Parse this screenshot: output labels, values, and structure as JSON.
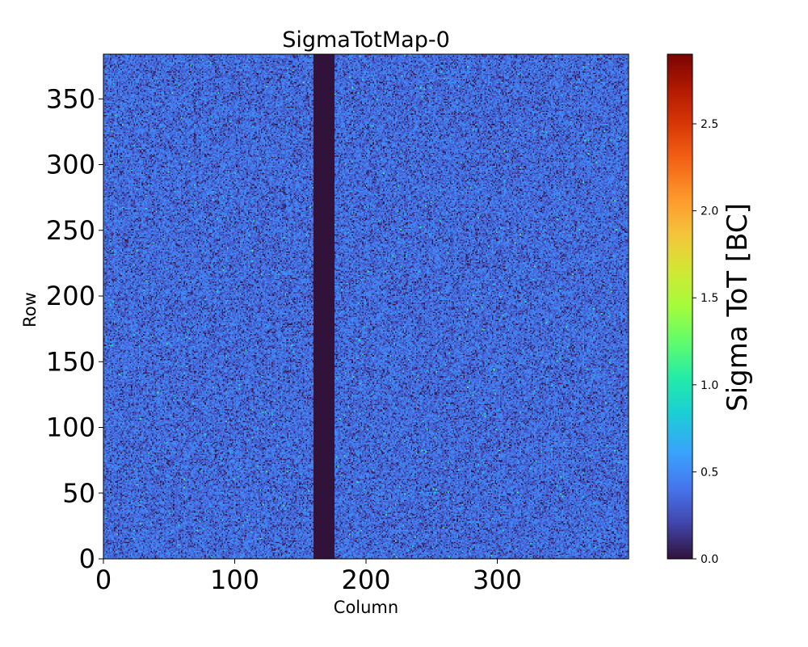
{
  "chart_data": {
    "type": "heatmap",
    "title": "SigmaTotMap-0",
    "xlabel": "Column",
    "ylabel": "Row",
    "xlim": [
      0,
      400
    ],
    "ylim": [
      0,
      384
    ],
    "x_ticks": [
      0,
      100,
      200,
      300
    ],
    "x_tick_labels": [
      "0",
      "100",
      "200",
      "300"
    ],
    "y_ticks": [
      0,
      50,
      100,
      150,
      200,
      250,
      300,
      350
    ],
    "y_tick_labels": [
      "0",
      "50",
      "100",
      "150",
      "200",
      "250",
      "300",
      "350"
    ],
    "dead_column_band": [
      160,
      176
    ],
    "dead_band_value": 0.0,
    "typical_value_range": [
      0.1,
      0.55
    ],
    "colorbar": {
      "label": "Sigma ToT [BC]",
      "range": [
        0.0,
        2.9
      ],
      "colormap": "turbo",
      "ticks": [
        0.0,
        0.5,
        1.0,
        1.5,
        2.0,
        2.5
      ],
      "tick_labels": [
        "0.0",
        "0.5",
        "1.0",
        "1.5",
        "2.0",
        "2.5"
      ]
    }
  }
}
